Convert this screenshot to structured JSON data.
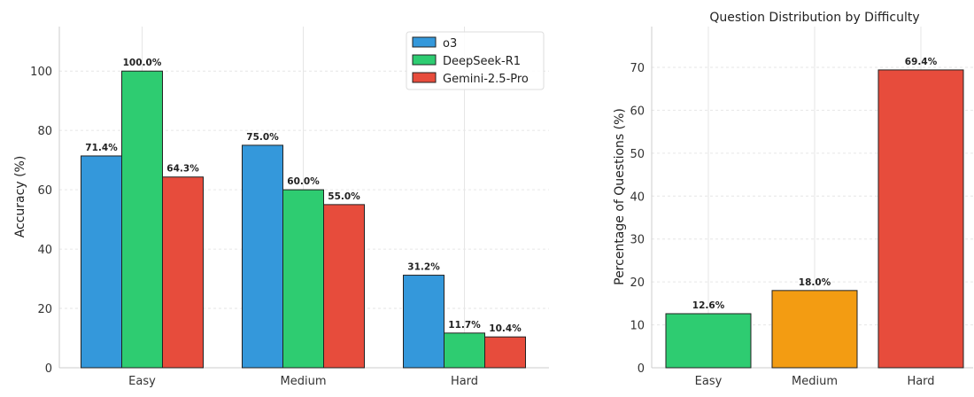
{
  "chart_data": [
    {
      "type": "bar",
      "title": "",
      "xlabel": "",
      "ylabel": "Accuracy (%)",
      "categories": [
        "Easy",
        "Medium",
        "Hard"
      ],
      "ylim": [
        0,
        115
      ],
      "yticks": [
        0,
        20,
        40,
        60,
        80,
        100
      ],
      "grid": true,
      "legend_position": "top-right",
      "series": [
        {
          "name": "o3",
          "color": "#3498db",
          "values": [
            71.4,
            75.0,
            31.2
          ],
          "labels": [
            "71.4%",
            "75.0%",
            "31.2%"
          ]
        },
        {
          "name": "DeepSeek-R1",
          "color": "#2ecc71",
          "values": [
            100.0,
            60.0,
            11.7
          ],
          "labels": [
            "100.0%",
            "60.0%",
            "11.7%"
          ]
        },
        {
          "name": "Gemini-2.5-Pro",
          "color": "#e74c3c",
          "values": [
            64.3,
            55.0,
            10.4
          ],
          "labels": [
            "64.3%",
            "55.0%",
            "10.4%"
          ]
        }
      ]
    },
    {
      "type": "bar",
      "title": "Question Distribution by Difficulty",
      "xlabel": "",
      "ylabel": "Percentage of Questions (%)",
      "categories": [
        "Easy",
        "Medium",
        "Hard"
      ],
      "ylim": [
        0,
        79.5
      ],
      "yticks": [
        0,
        10,
        20,
        30,
        40,
        50,
        60,
        70
      ],
      "grid": true,
      "values": [
        12.6,
        18.0,
        69.4
      ],
      "labels": [
        "12.6%",
        "18.0%",
        "69.4%"
      ],
      "colors": [
        "#2ecc71",
        "#f39c12",
        "#e74c3c"
      ]
    }
  ]
}
